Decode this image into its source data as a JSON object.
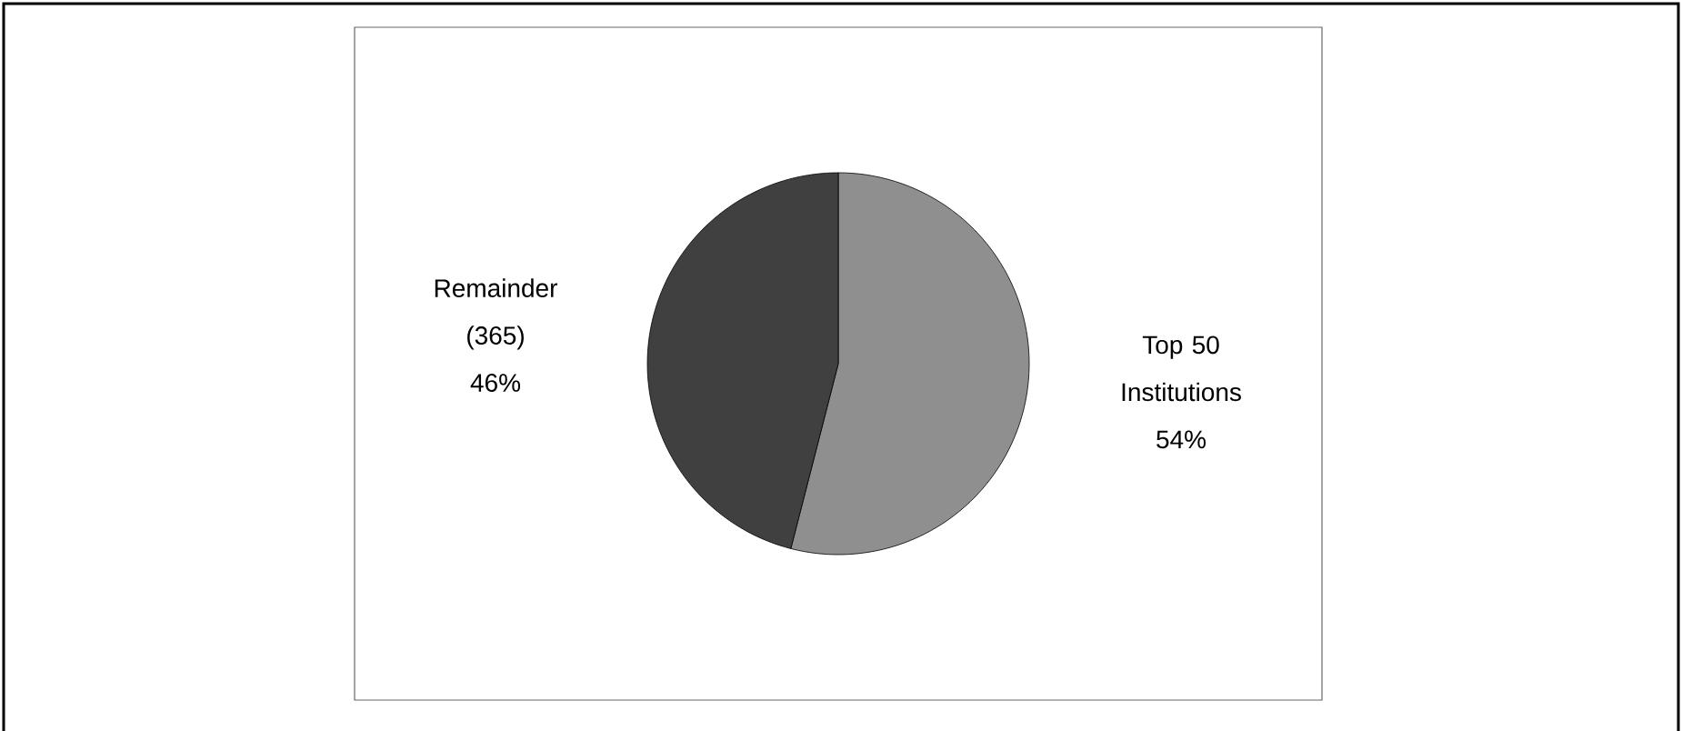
{
  "chart_data": {
    "type": "pie",
    "categories": [
      "Top 50 Institutions",
      "Remainder (365)"
    ],
    "values": [
      54,
      46
    ],
    "colors": [
      "#8f8f8f",
      "#404040"
    ],
    "value_labels": [
      "54%",
      "46%"
    ]
  }
}
